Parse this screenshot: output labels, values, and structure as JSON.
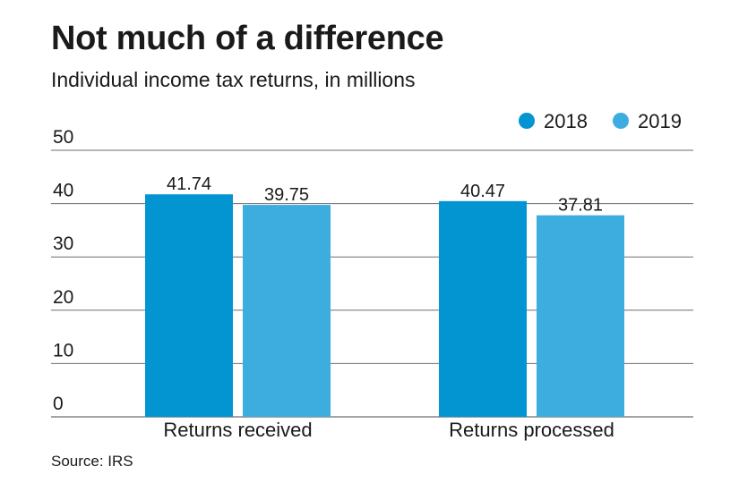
{
  "title": "Not much of a difference",
  "subtitle": "Individual income tax returns, in millions",
  "source": "Source: IRS",
  "colors": {
    "series_2018": "#0394d2",
    "series_2019": "#3dade0",
    "gridline": "#6d6d6d",
    "text": "#1a1a1a"
  },
  "chart_data": {
    "type": "bar",
    "categories": [
      "Returns received",
      "Returns processed"
    ],
    "series": [
      {
        "name": "2018",
        "values": [
          41.74,
          40.47
        ],
        "labels": [
          "41.74",
          "40.47"
        ]
      },
      {
        "name": "2019",
        "values": [
          39.75,
          37.81
        ],
        "labels": [
          "39.75",
          "37.81"
        ]
      }
    ],
    "yticks": [
      0,
      10,
      20,
      30,
      40,
      50
    ],
    "ylim": [
      0,
      50
    ],
    "grid": true,
    "legend": "top-right"
  }
}
